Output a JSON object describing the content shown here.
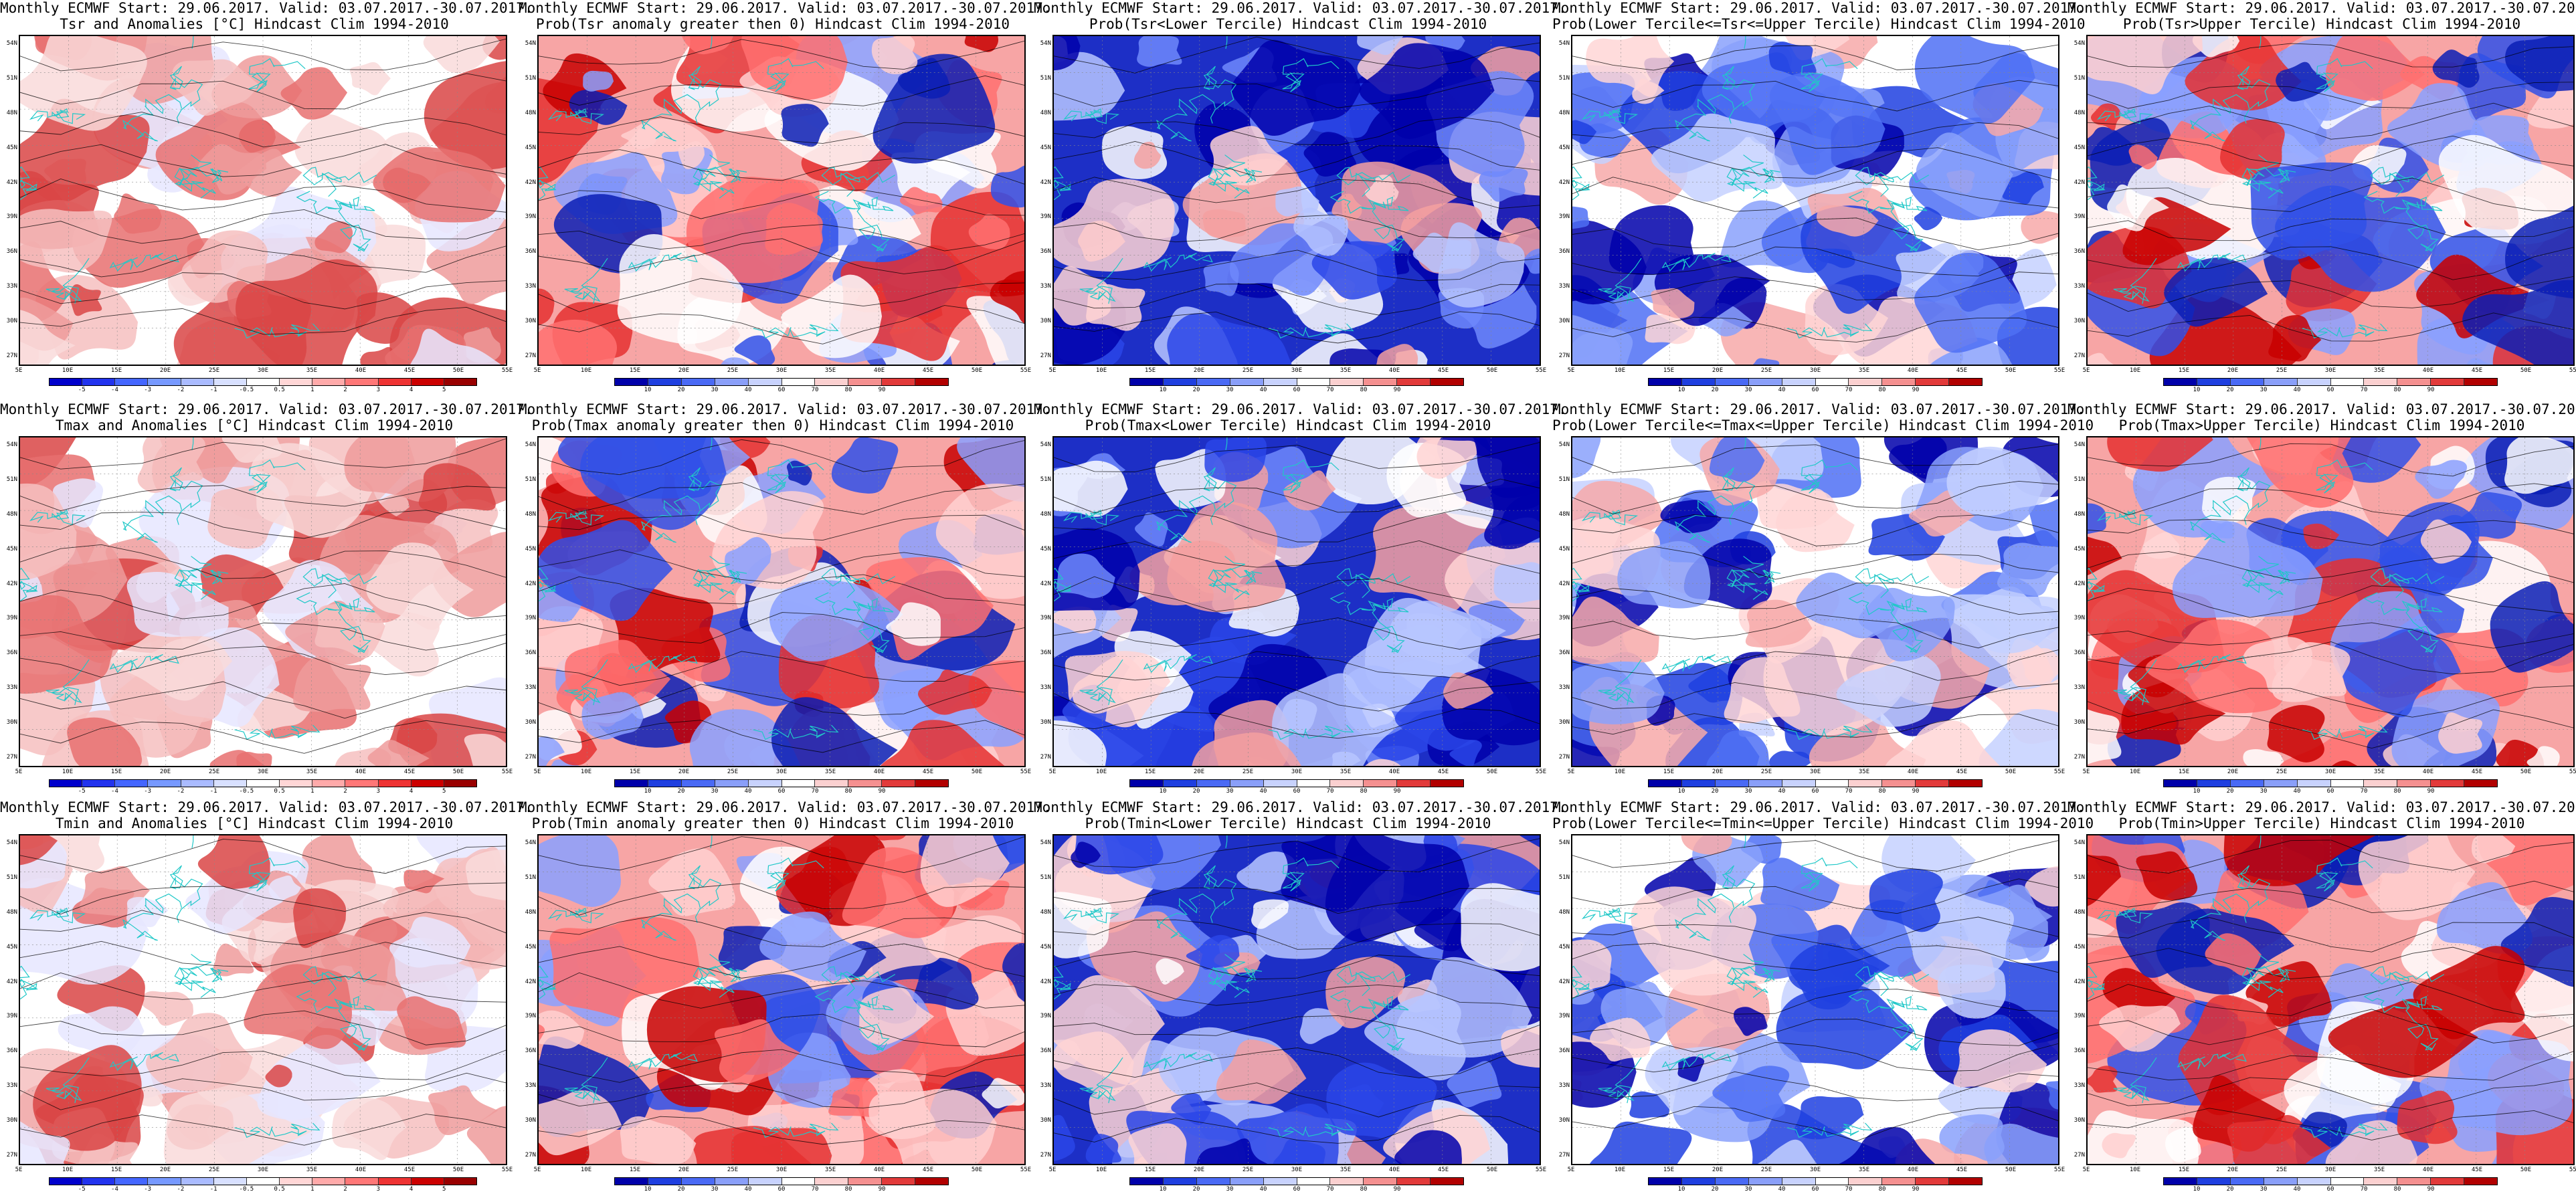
{
  "header": "Monthly ECMWF Start: 29.06.2017. Valid: 03.07.2017.-30.07.2017.",
  "map_axes": {
    "lat_labels": [
      "54N",
      "51N",
      "48N",
      "45N",
      "42N",
      "39N",
      "36N",
      "33N",
      "30N",
      "27N"
    ],
    "lon_labels": [
      "5E",
      "10E",
      "15E",
      "20E",
      "25E",
      "30E",
      "35E",
      "40E",
      "45E",
      "50E",
      "55E"
    ]
  },
  "colorbars": {
    "anomaly": {
      "labels": [
        "-5",
        "-4",
        "-3",
        "-2",
        "-1",
        "-0.5",
        "0.5",
        "1",
        "2",
        "3",
        "4",
        "5"
      ],
      "colors": [
        "#0000cc",
        "#2233ee",
        "#4466ff",
        "#7799ff",
        "#aabbff",
        "#d8e0ff",
        "#ffffff",
        "#ffd6d6",
        "#ffaaaa",
        "#ff7777",
        "#ee3333",
        "#cc0000",
        "#990000"
      ]
    },
    "probability": {
      "labels": [
        "10",
        "20",
        "30",
        "40",
        "60",
        "70",
        "80",
        "90"
      ],
      "colors": [
        "#0000aa",
        "#1f3fe0",
        "#4a6af5",
        "#8a9ff9",
        "#c8d2fd",
        "#ffffff",
        "#fbd0d0",
        "#f59090",
        "#e23a3a",
        "#b20000"
      ]
    }
  },
  "panels": [
    {
      "row": 0,
      "col": 0,
      "title2": "Tsr and Anomalies [°C] Hindcast Clim 1994-2010",
      "colorbar": "anomaly",
      "palette": "anom"
    },
    {
      "row": 0,
      "col": 1,
      "title2": "Prob(Tsr anomaly greater then 0) Hindcast Clim 1994-2010",
      "colorbar": "probability",
      "palette": "warm"
    },
    {
      "row": 0,
      "col": 2,
      "title2": "Prob(Tsr<Lower Tercile) Hindcast Clim 1994-2010",
      "colorbar": "probability",
      "palette": "cold"
    },
    {
      "row": 0,
      "col": 3,
      "title2": "Prob(Lower Tercile<=Tsr<=Upper Tercile) Hindcast Clim 1994-2010",
      "colorbar": "probability",
      "palette": "mid"
    },
    {
      "row": 0,
      "col": 4,
      "title2": "Prob(Tsr>Upper Tercile) Hindcast Clim 1994-2010",
      "colorbar": "probability",
      "palette": "warm"
    },
    {
      "row": 1,
      "col": 0,
      "title2": "Tmax and Anomalies [°C] Hindcast Clim 1994-2010",
      "colorbar": "anomaly",
      "palette": "anom"
    },
    {
      "row": 1,
      "col": 1,
      "title2": "Prob(Tmax anomaly greater then 0) Hindcast Clim 1994-2010",
      "colorbar": "probability",
      "palette": "warm"
    },
    {
      "row": 1,
      "col": 2,
      "title2": "Prob(Tmax<Lower Tercile) Hindcast Clim 1994-2010",
      "colorbar": "probability",
      "palette": "cold"
    },
    {
      "row": 1,
      "col": 3,
      "title2": "Prob(Lower Tercile<=Tmax<=Upper Tercile) Hindcast Clim 1994-2010",
      "colorbar": "probability",
      "palette": "mid"
    },
    {
      "row": 1,
      "col": 4,
      "title2": "Prob(Tmax>Upper Tercile) Hindcast Clim 1994-2010",
      "colorbar": "probability",
      "palette": "warm"
    },
    {
      "row": 2,
      "col": 0,
      "title2": "Tmin and Anomalies [°C] Hindcast Clim 1994-2010",
      "colorbar": "anomaly",
      "palette": "anom"
    },
    {
      "row": 2,
      "col": 1,
      "title2": "Prob(Tmin anomaly greater then 0) Hindcast Clim 1994-2010",
      "colorbar": "probability",
      "palette": "warm"
    },
    {
      "row": 2,
      "col": 2,
      "title2": "Prob(Tmin<Lower Tercile) Hindcast Clim 1994-2010",
      "colorbar": "probability",
      "palette": "cold"
    },
    {
      "row": 2,
      "col": 3,
      "title2": "Prob(Lower Tercile<=Tmin<=Upper Tercile) Hindcast Clim 1994-2010",
      "colorbar": "probability",
      "palette": "mid"
    },
    {
      "row": 2,
      "col": 4,
      "title2": "Prob(Tmin>Upper Tercile) Hindcast Clim 1994-2010",
      "colorbar": "probability",
      "palette": "warm"
    }
  ],
  "palettes": {
    "anom": {
      "base": "#ffffff",
      "blobs": [
        "#f6c0c0",
        "#ef9b9b",
        "#e77070",
        "#d94545",
        "#f9dada",
        "#e6e6ff"
      ]
    },
    "warm": {
      "base": "#f7a5a5",
      "blobs": [
        "#c80000",
        "#e53030",
        "#ff7070",
        "#ffd0d0",
        "#ffffff",
        "#8aa0ff",
        "#3050e8",
        "#0a1fb5"
      ]
    },
    "cold": {
      "base": "#1d2fc6",
      "blobs": [
        "#0000aa",
        "#2a45e8",
        "#6f88fb",
        "#b7c5ff",
        "#ffffff",
        "#ffd3d3",
        "#f4a0a0"
      ]
    },
    "mid": {
      "base": "#ffffff",
      "blobs": [
        "#1f3fe0",
        "#4f70f5",
        "#8aa1fb",
        "#c6d1ff",
        "#ffd6d6",
        "#f7a9a9",
        "#0000aa"
      ]
    }
  },
  "overlay_colors": {
    "coast": "#20c8c8",
    "contour": "#000000",
    "grid": "#888888"
  }
}
